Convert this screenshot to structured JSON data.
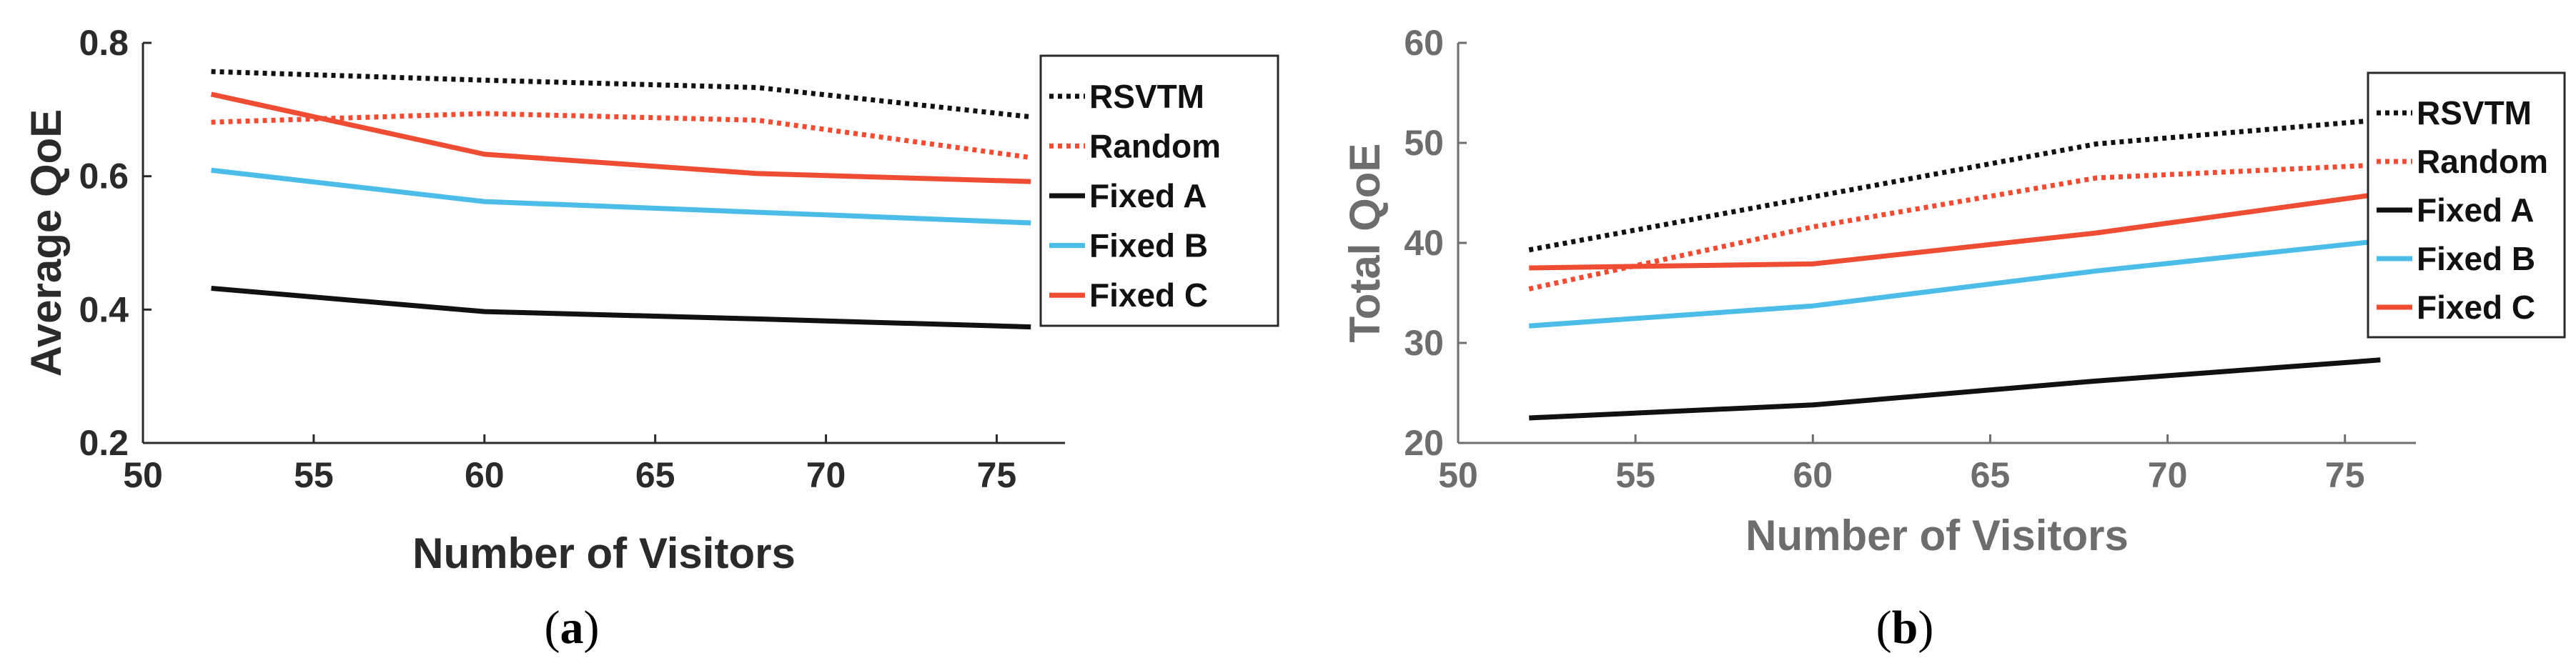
{
  "colors": {
    "rsvtm": "#111111",
    "random": "#ee4c33",
    "fixed_a": "#111111",
    "fixed_b": "#4cbde8",
    "fixed_c": "#ee4c33",
    "axis_a": "#2a2a2a",
    "axis_b": "#6d6d6d"
  },
  "chart_data": [
    {
      "type": "line",
      "panel": "a",
      "caption_letter": "a",
      "xlabel": "Number of Visitors",
      "ylabel": "Average QoE",
      "xlim": [
        50,
        77
      ],
      "ylim": [
        0.2,
        0.8
      ],
      "xticks": [
        50,
        55,
        60,
        65,
        70,
        75
      ],
      "yticks": [
        0.2,
        0.4,
        0.6,
        0.8
      ],
      "ytick_labels": [
        "0.2",
        "0.4",
        "0.6",
        "0.8"
      ],
      "x": [
        52,
        60,
        68,
        76
      ],
      "legend_position": "top-right",
      "series": [
        {
          "name": "RSVTM",
          "style": "dotted",
          "color_key": "rsvtm",
          "values": [
            0.757,
            0.744,
            0.733,
            0.689
          ]
        },
        {
          "name": "Random",
          "style": "dotted",
          "color_key": "random",
          "values": [
            0.681,
            0.694,
            0.684,
            0.628
          ]
        },
        {
          "name": "Fixed A",
          "style": "solid",
          "color_key": "fixed_a",
          "values": [
            0.432,
            0.397,
            0.386,
            0.374
          ]
        },
        {
          "name": "Fixed B",
          "style": "solid",
          "color_key": "fixed_b",
          "values": [
            0.609,
            0.562,
            0.546,
            0.53
          ]
        },
        {
          "name": "Fixed C",
          "style": "solid",
          "color_key": "fixed_c",
          "values": [
            0.723,
            0.633,
            0.604,
            0.592
          ]
        }
      ]
    },
    {
      "type": "line",
      "panel": "b",
      "caption_letter": "b",
      "xlabel": "Number of Visitors",
      "ylabel": "Total QoE",
      "xlim": [
        50,
        77
      ],
      "ylim": [
        20,
        60
      ],
      "xticks": [
        50,
        55,
        60,
        65,
        70,
        75
      ],
      "yticks": [
        20,
        30,
        40,
        50,
        60
      ],
      "ytick_labels": [
        "20",
        "30",
        "40",
        "50",
        "60"
      ],
      "x": [
        52,
        60,
        68,
        76
      ],
      "legend_position": "top-right",
      "series": [
        {
          "name": "RSVTM",
          "style": "dotted",
          "color_key": "rsvtm",
          "values": [
            39.3,
            44.6,
            49.9,
            52.3
          ]
        },
        {
          "name": "Random",
          "style": "dotted",
          "color_key": "random",
          "values": [
            35.4,
            41.6,
            46.5,
            47.8
          ]
        },
        {
          "name": "Fixed A",
          "style": "solid",
          "color_key": "fixed_a",
          "values": [
            22.5,
            23.8,
            26.2,
            28.3
          ]
        },
        {
          "name": "Fixed B",
          "style": "solid",
          "color_key": "fixed_b",
          "values": [
            31.7,
            33.7,
            37.2,
            40.2
          ]
        },
        {
          "name": "Fixed C",
          "style": "solid",
          "color_key": "fixed_c",
          "values": [
            37.5,
            37.9,
            41.0,
            44.9
          ]
        }
      ]
    }
  ]
}
